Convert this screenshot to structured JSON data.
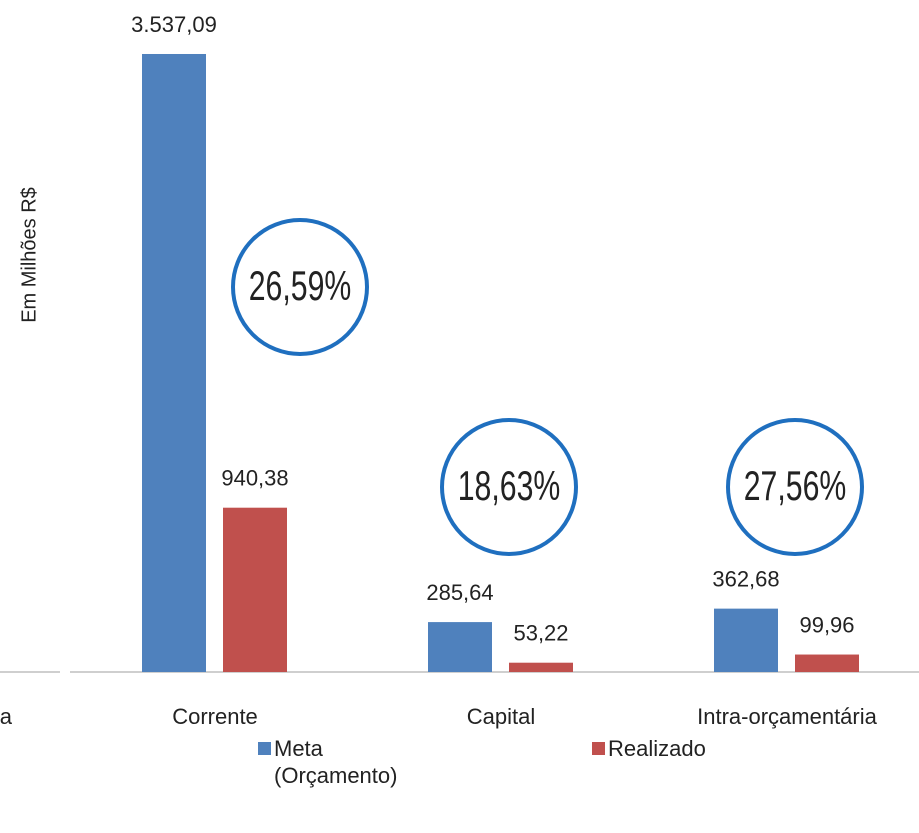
{
  "chart_data": {
    "type": "bar",
    "y_label": "Em Milhões R$",
    "categories": [
      "a",
      "Corrente",
      "Capital",
      "Intra-orçamentária"
    ],
    "series": [
      {
        "name": "Meta (Orçamento)",
        "color": "#4f81bd",
        "values": [
          null,
          3537.09,
          285.64,
          362.68
        ],
        "value_labels": [
          null,
          "3.537,09",
          "285,64",
          "362,68"
        ]
      },
      {
        "name": "Realizado",
        "color": "#c0504d",
        "values": [
          null,
          940.38,
          53.22,
          99.96
        ],
        "value_labels": [
          null,
          "940,38",
          "53,22",
          "99,96"
        ]
      }
    ],
    "annotations": [
      {
        "text": "26,59%",
        "category": 1
      },
      {
        "text": "18,63%",
        "category": 2
      },
      {
        "text": "27,56%",
        "category": 3
      }
    ],
    "ylim": [
      0,
      3600
    ]
  }
}
